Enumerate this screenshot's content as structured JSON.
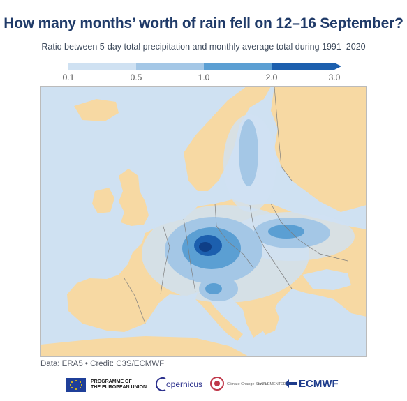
{
  "title": "How many months’ worth of rain fell on 12–16 September?",
  "subtitle": "Ratio between 5-day total precipitation and monthly average total during 1991–2020",
  "legend": {
    "ticks": [
      "0.1",
      "0.5",
      "1.0",
      "2.0",
      "3.0"
    ],
    "colors": [
      "#cfe1f2",
      "#a4c7e6",
      "#5b9fd3",
      "#1c5fae"
    ]
  },
  "map": {
    "land_color": "#f7d9a3",
    "sea_color": "#cfe1f2",
    "border_color": "#7d7d7d"
  },
  "credit": "Data: ERA5 • Credit: C3S/ECMWF",
  "footer": {
    "eu_line1": "PROGRAMME OF",
    "eu_line2": "THE EUROPEAN UNION",
    "copernicus": "opernicus",
    "climate": "Climate Change Service",
    "implemented": "IMPLEMENTED BY",
    "ecmwf": "ECMWF"
  }
}
